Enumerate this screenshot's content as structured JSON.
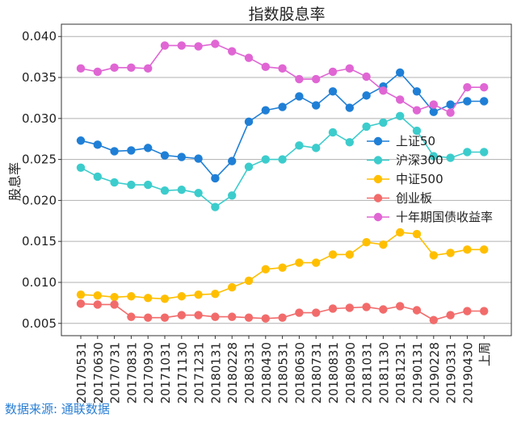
{
  "chart_data": {
    "type": "line",
    "title": "指数股息率",
    "xlabel": "",
    "ylabel": "股息率",
    "ylim": [
      0.0035,
      0.0415
    ],
    "yticks": [
      0.005,
      0.01,
      0.015,
      0.02,
      0.025,
      0.03,
      0.035,
      0.04
    ],
    "ytick_labels": [
      "0.005",
      "0.010",
      "0.015",
      "0.020",
      "0.025",
      "0.030",
      "0.035",
      "0.040"
    ],
    "grid": "horizontal",
    "legend_position": "right",
    "categories": [
      "20170531",
      "20170630",
      "20170731",
      "20170831",
      "20170930",
      "20171031",
      "20171130",
      "20171231",
      "20180131",
      "20180228",
      "20180331",
      "20180430",
      "20180531",
      "20180630",
      "20180731",
      "20180831",
      "20180930",
      "20181031",
      "20181130",
      "20181231",
      "20190131",
      "20190228",
      "20190331",
      "20190430",
      "上周"
    ],
    "series": [
      {
        "name": "上证50",
        "color": "#1f7fd6",
        "values": [
          0.0273,
          0.0268,
          0.026,
          0.0261,
          0.0264,
          0.0255,
          0.0253,
          0.0251,
          0.0227,
          0.0248,
          0.0296,
          0.031,
          0.0314,
          0.0327,
          0.0316,
          0.0333,
          0.0313,
          0.0328,
          0.0339,
          0.0356,
          0.0333,
          0.0308,
          0.0317,
          0.0321,
          0.0321
        ]
      },
      {
        "name": "沪深300",
        "color": "#3ccccc",
        "values": [
          0.024,
          0.0229,
          0.0222,
          0.0219,
          0.0219,
          0.0212,
          0.0213,
          0.0209,
          0.0192,
          0.0206,
          0.0241,
          0.025,
          0.025,
          0.0267,
          0.0264,
          0.0283,
          0.0271,
          0.029,
          0.0295,
          0.0303,
          0.0285,
          0.0254,
          0.0252,
          0.0259,
          0.0259
        ]
      },
      {
        "name": "中证500",
        "color": "#ffbf00",
        "values": [
          0.0085,
          0.0084,
          0.0082,
          0.0083,
          0.0081,
          0.008,
          0.0083,
          0.0085,
          0.0086,
          0.0094,
          0.0102,
          0.0116,
          0.0118,
          0.0124,
          0.0124,
          0.0134,
          0.0134,
          0.0149,
          0.0146,
          0.0161,
          0.0159,
          0.0133,
          0.0136,
          0.014,
          0.014
        ]
      },
      {
        "name": "创业板",
        "color": "#f26b6b",
        "values": [
          0.0074,
          0.0073,
          0.0073,
          0.0058,
          0.0057,
          0.0057,
          0.006,
          0.006,
          0.0058,
          0.0058,
          0.0057,
          0.0056,
          0.0057,
          0.0063,
          0.0063,
          0.0068,
          0.0069,
          0.007,
          0.0067,
          0.0071,
          0.0066,
          0.0054,
          0.006,
          0.0065,
          0.0065
        ]
      },
      {
        "name": "十年期国债收益率",
        "color": "#e066d4",
        "values": [
          0.0361,
          0.0357,
          0.0362,
          0.0362,
          0.0361,
          0.0389,
          0.0389,
          0.0388,
          0.0391,
          0.0382,
          0.0374,
          0.0363,
          0.0361,
          0.0348,
          0.0348,
          0.0357,
          0.0361,
          0.0351,
          0.0334,
          0.0323,
          0.031,
          0.0317,
          0.0307,
          0.0338,
          0.0338
        ]
      }
    ]
  },
  "source_note": "数据来源: 通联数据"
}
